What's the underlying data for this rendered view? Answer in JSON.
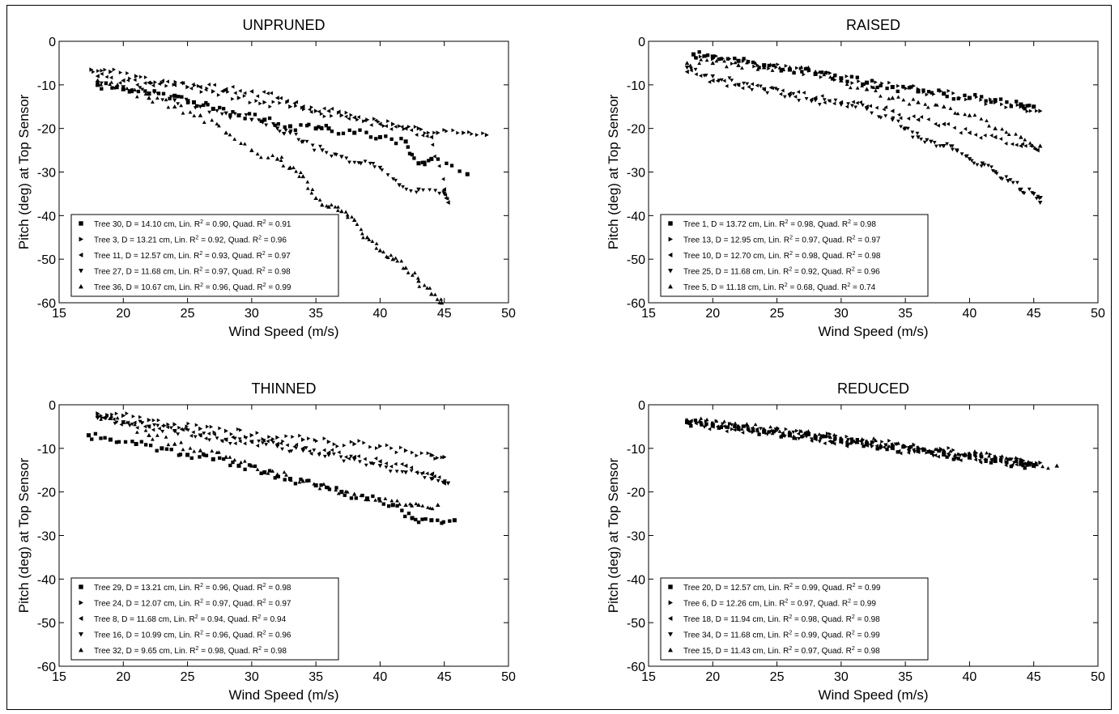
{
  "figure": {
    "border": true,
    "ink_color": "#000000",
    "background": "#ffffff"
  },
  "chart_data": [
    {
      "type": "scatter",
      "title": "UNPRUNED",
      "xlabel": "Wind Speed (m/s)",
      "ylabel": "Pitch (deg) at Top Sensor",
      "xlim": [
        15,
        50
      ],
      "ylim": [
        -60,
        0
      ],
      "xticks": [
        "15",
        "20",
        "25",
        "30",
        "35",
        "40",
        "45",
        "50"
      ],
      "yticks": [
        "0",
        "-10",
        "-20",
        "-30",
        "-40",
        "-50",
        "-60"
      ],
      "grid": false,
      "legend_position": "bottom-left",
      "legend": [
        {
          "marker": "square",
          "pre": "Tree 30, D = 14.10 cm, Lin. R",
          "mid": " = 0.90, Quad. R",
          "post": " = 0.91"
        },
        {
          "marker": "tri-right",
          "pre": "Tree 3, D = 13.21 cm, Lin. R",
          "mid": " = 0.92, Quad. R",
          "post": " = 0.96"
        },
        {
          "marker": "tri-left",
          "pre": "Tree 11, D = 12.57 cm, Lin. R",
          "mid": " = 0.93, Quad. R",
          "post": " = 0.97"
        },
        {
          "marker": "tri-down",
          "pre": "Tree 27, D = 11.68 cm, Lin. R",
          "mid": " = 0.97, Quad. R",
          "post": " = 0.98"
        },
        {
          "marker": "tri-up",
          "pre": "Tree 36, D = 10.67 cm, Lin. R",
          "mid": " = 0.96, Quad. R",
          "post": " = 0.99"
        }
      ],
      "series": [
        {
          "marker": "square",
          "x": [
            18,
            20,
            22,
            24,
            25.5,
            27,
            29,
            31,
            33,
            35,
            36,
            38,
            40,
            42,
            43,
            44,
            46.8
          ],
          "y": [
            -10,
            -11,
            -12,
            -12.5,
            -14,
            -15.5,
            -17,
            -18,
            -19.5,
            -20,
            -20,
            -21,
            -22,
            -23,
            -28,
            -27,
            -30.5
          ]
        },
        {
          "marker": "tri-right",
          "x": [
            17.5,
            19,
            21,
            23,
            25,
            27,
            29,
            31,
            33,
            35,
            37,
            39,
            41,
            43,
            44.5,
            46.5,
            48.3
          ],
          "y": [
            -6.5,
            -7,
            -8,
            -9.5,
            -10.5,
            -11.5,
            -13,
            -14,
            -15,
            -16,
            -17,
            -18,
            -19,
            -20,
            -21,
            -21,
            -21.5
          ]
        },
        {
          "marker": "tri-left",
          "x": [
            18,
            20,
            22,
            24,
            26,
            28,
            30,
            32,
            34,
            36,
            38,
            40,
            42,
            44,
            45,
            45.3
          ],
          "y": [
            -8,
            -9,
            -9.5,
            -10,
            -10.5,
            -11,
            -11.5,
            -13,
            -15,
            -16,
            -17.5,
            -19,
            -20,
            -22,
            -34,
            -37
          ]
        },
        {
          "marker": "tri-down",
          "x": [
            18,
            20,
            22,
            24,
            26,
            28,
            30,
            32,
            33,
            34,
            35.5,
            37,
            38.5,
            40,
            41.5,
            43,
            45
          ],
          "y": [
            -9.5,
            -10.5,
            -12,
            -13.5,
            -15,
            -16.5,
            -18,
            -20,
            -21,
            -23,
            -25,
            -26.5,
            -28,
            -29,
            -33,
            -34,
            -35
          ]
        },
        {
          "marker": "tri-up",
          "x": [
            18,
            20,
            22,
            24,
            26,
            28,
            30,
            32,
            33,
            34,
            35,
            36,
            37,
            38,
            39,
            40,
            41,
            42,
            43,
            44,
            44.8
          ],
          "y": [
            -9,
            -11,
            -13,
            -15,
            -17,
            -21,
            -25,
            -27,
            -29,
            -31,
            -36,
            -38,
            -39,
            -41,
            -45,
            -48,
            -50,
            -52,
            -55,
            -58,
            -60
          ]
        }
      ]
    },
    {
      "type": "scatter",
      "title": "RAISED",
      "xlabel": "Wind Speed (m/s)",
      "ylabel": "Pitch (deg) at Top Sensor",
      "xlim": [
        15,
        50
      ],
      "ylim": [
        -60,
        0
      ],
      "xticks": [
        "15",
        "20",
        "25",
        "30",
        "35",
        "40",
        "45",
        "50"
      ],
      "yticks": [
        "0",
        "-10",
        "-20",
        "-30",
        "-40",
        "-50",
        "-60"
      ],
      "grid": false,
      "legend_position": "bottom-left",
      "legend": [
        {
          "marker": "square",
          "pre": "Tree 1, D = 13.72 cm, Lin. R",
          "mid": " = 0.98, Quad. R",
          "post": " = 0.98"
        },
        {
          "marker": "tri-right",
          "pre": "Tree 13, D = 12.95 cm, Lin. R",
          "mid": " = 0.97, Quad. R",
          "post": " = 0.97"
        },
        {
          "marker": "tri-left",
          "pre": "Tree 10, D = 12.70 cm, Lin. R",
          "mid": " = 0.98, Quad. R",
          "post": " = 0.98"
        },
        {
          "marker": "tri-down",
          "pre": "Tree 25, D = 11.68 cm, Lin. R",
          "mid": " = 0.92, Quad. R",
          "post": " = 0.96"
        },
        {
          "marker": "tri-up",
          "pre": "Tree 5, D = 11.18 cm, Lin. R",
          "mid": " = 0.68, Quad. R",
          "post": " = 0.74"
        }
      ],
      "series": [
        {
          "marker": "square",
          "x": [
            18.5,
            20,
            22,
            24,
            26,
            28,
            30,
            32,
            34,
            36,
            38,
            40,
            42,
            44,
            45
          ],
          "y": [
            -3,
            -3.5,
            -4.5,
            -5.5,
            -6.5,
            -7.5,
            -8.5,
            -9.5,
            -10.5,
            -11.5,
            -12,
            -13,
            -13.5,
            -14.5,
            -15
          ]
        },
        {
          "marker": "tri-right",
          "x": [
            18.5,
            20,
            22,
            24,
            26,
            28,
            30,
            32,
            34,
            36,
            38,
            40,
            42,
            44,
            45.5
          ],
          "y": [
            -3,
            -4,
            -4.5,
            -5.5,
            -6.5,
            -7.5,
            -8.5,
            -9.5,
            -10.5,
            -11,
            -12,
            -13,
            -14,
            -15,
            -16
          ]
        },
        {
          "marker": "tri-left",
          "x": [
            18,
            20,
            22,
            24,
            26,
            28,
            30,
            32,
            34,
            36,
            38,
            40,
            42,
            44,
            45.3
          ],
          "y": [
            -7,
            -9,
            -10,
            -11,
            -12,
            -13,
            -14,
            -15,
            -16,
            -18,
            -19,
            -21,
            -22,
            -24,
            -25
          ]
        },
        {
          "marker": "tri-down",
          "x": [
            18,
            20,
            22,
            24,
            26,
            28,
            30,
            32,
            34,
            35,
            36,
            37,
            38,
            39,
            40,
            41,
            42,
            43,
            44,
            45,
            45.5
          ],
          "y": [
            -6,
            -8,
            -10,
            -11,
            -12.5,
            -13.5,
            -14.5,
            -15.5,
            -18,
            -20,
            -22,
            -23,
            -24,
            -25,
            -27,
            -28,
            -30,
            -32,
            -34,
            -35,
            -37
          ]
        },
        {
          "marker": "tri-up",
          "x": [
            18,
            20,
            22,
            24,
            26,
            28,
            30,
            32,
            34,
            36,
            38,
            40,
            42,
            44,
            45.5
          ],
          "y": [
            -5,
            -5,
            -5.5,
            -6,
            -6,
            -7,
            -9,
            -11,
            -13,
            -14,
            -15,
            -17,
            -20,
            -22,
            -24
          ]
        }
      ]
    },
    {
      "type": "scatter",
      "title": "THINNED",
      "xlabel": "Wind Speed (m/s)",
      "ylabel": "Pitch (deg) at Top Sensor",
      "xlim": [
        15,
        50
      ],
      "ylim": [
        -60,
        0
      ],
      "xticks": [
        "15",
        "20",
        "25",
        "30",
        "35",
        "40",
        "45",
        "50"
      ],
      "yticks": [
        "0",
        "-10",
        "-20",
        "-30",
        "-40",
        "-50",
        "-60"
      ],
      "grid": false,
      "legend_position": "bottom-left",
      "legend": [
        {
          "marker": "square",
          "pre": "Tree 29, D = 13.21 cm, Lin. R",
          "mid": " = 0.96, Quad. R",
          "post": " = 0.98"
        },
        {
          "marker": "tri-right",
          "pre": "Tree 24, D = 12.07 cm, Lin. R",
          "mid": " = 0.97, Quad. R",
          "post": " = 0.97"
        },
        {
          "marker": "tri-left",
          "pre": "Tree 8, D = 11.68 cm, Lin. R",
          "mid": " = 0.94, Quad. R",
          "post": " = 0.94"
        },
        {
          "marker": "tri-down",
          "pre": "Tree 16, D = 10.99 cm, Lin. R",
          "mid": " = 0.96, Quad. R",
          "post": " = 0.96"
        },
        {
          "marker": "tri-up",
          "pre": "Tree 32, D = 9.65 cm, Lin. R",
          "mid": " = 0.98, Quad. R",
          "post": " = 0.98"
        }
      ],
      "series": [
        {
          "marker": "square",
          "x": [
            17.3,
            19,
            21,
            23,
            25,
            27,
            29,
            31,
            33,
            35,
            37,
            39,
            41,
            42.5,
            44,
            45.8
          ],
          "y": [
            -7,
            -8,
            -9,
            -10,
            -11.5,
            -12.5,
            -14,
            -15.5,
            -17,
            -18.5,
            -20,
            -21.5,
            -23,
            -26,
            -26.5,
            -26.5
          ]
        },
        {
          "marker": "tri-right",
          "x": [
            18,
            20,
            22,
            24,
            26,
            28,
            30,
            32,
            34,
            36,
            38,
            40,
            42,
            44,
            45
          ],
          "y": [
            -2,
            -2.5,
            -3.5,
            -4.5,
            -5.5,
            -6,
            -7,
            -7.5,
            -8,
            -8.5,
            -9,
            -9.5,
            -10.5,
            -11.5,
            -12
          ]
        },
        {
          "marker": "tri-left",
          "x": [
            18.5,
            20,
            22,
            24,
            26,
            28,
            30,
            32,
            34,
            36,
            38,
            40,
            42,
            44,
            45
          ],
          "y": [
            -3,
            -4,
            -5,
            -6,
            -7,
            -8,
            -8.5,
            -9,
            -10,
            -11,
            -12,
            -13,
            -14,
            -16,
            -18
          ]
        },
        {
          "marker": "tri-down",
          "x": [
            18,
            20,
            22,
            24,
            26,
            28,
            30,
            32,
            34,
            36,
            38,
            40,
            42,
            44,
            45.3
          ],
          "y": [
            -3,
            -4,
            -5,
            -6,
            -7,
            -8,
            -8.5,
            -9.5,
            -10.5,
            -11.5,
            -12.5,
            -14,
            -15.5,
            -17,
            -18
          ]
        },
        {
          "marker": "tri-up",
          "x": [
            18,
            20,
            22,
            24,
            26,
            28,
            30,
            32,
            34,
            36,
            38,
            40,
            42,
            43,
            44.5
          ],
          "y": [
            -2.5,
            -4,
            -7,
            -9,
            -10.5,
            -12,
            -14,
            -16,
            -17.5,
            -19,
            -20.5,
            -22,
            -23,
            -23,
            -23
          ]
        }
      ]
    },
    {
      "type": "scatter",
      "title": "REDUCED",
      "xlabel": "Wind Speed (m/s)",
      "ylabel": "Pitch (deg) at Top Sensor",
      "xlim": [
        15,
        50
      ],
      "ylim": [
        -60,
        0
      ],
      "xticks": [
        "15",
        "20",
        "25",
        "30",
        "35",
        "40",
        "45",
        "50"
      ],
      "yticks": [
        "0",
        "-10",
        "-20",
        "-30",
        "-40",
        "-50",
        "-60"
      ],
      "grid": false,
      "legend_position": "bottom-left",
      "legend": [
        {
          "marker": "square",
          "pre": "Tree 20, D = 12.57 cm, Lin. R",
          "mid": " = 0.99, Quad. R",
          "post": " = 0.99"
        },
        {
          "marker": "tri-right",
          "pre": "Tree 6, D = 12.26 cm, Lin. R",
          "mid": " = 0.97, Quad. R",
          "post": " = 0.99"
        },
        {
          "marker": "tri-left",
          "pre": "Tree 18, D = 11.94 cm, Lin. R",
          "mid": " = 0.98, Quad. R",
          "post": " = 0.98"
        },
        {
          "marker": "tri-down",
          "pre": "Tree 34, D = 11.68 cm, Lin. R",
          "mid": " = 0.99, Quad. R",
          "post": " = 0.99"
        },
        {
          "marker": "tri-up",
          "pre": "Tree 15, D = 11.43 cm, Lin. R",
          "mid": " = 0.97, Quad. R",
          "post": " = 0.98"
        }
      ],
      "series": [
        {
          "marker": "square",
          "x": [
            18,
            20,
            22,
            24,
            26,
            28,
            30,
            32,
            34,
            36,
            38,
            40,
            42,
            44,
            45
          ],
          "y": [
            -4,
            -4.8,
            -5.5,
            -6.2,
            -7,
            -7.6,
            -8.4,
            -9.1,
            -9.9,
            -10.6,
            -11.4,
            -12.1,
            -12.9,
            -13.6,
            -14
          ]
        },
        {
          "marker": "tri-right",
          "x": [
            18,
            20,
            22,
            24,
            26,
            28,
            30,
            32,
            34,
            36,
            38,
            40,
            42,
            44,
            45.5
          ],
          "y": [
            -3.6,
            -4.3,
            -5,
            -5.7,
            -6.4,
            -7.1,
            -7.8,
            -8.5,
            -9.2,
            -9.9,
            -10.6,
            -11.3,
            -12,
            -12.7,
            -13.3
          ]
        },
        {
          "marker": "tri-left",
          "x": [
            18,
            20,
            22,
            24,
            26,
            28,
            30,
            32,
            34,
            36,
            38,
            40,
            42,
            44,
            45
          ],
          "y": [
            -4.2,
            -5,
            -5.7,
            -6.4,
            -7.1,
            -7.9,
            -8.6,
            -9.3,
            -10,
            -10.8,
            -11.5,
            -12.2,
            -12.9,
            -13.7,
            -14.1
          ]
        },
        {
          "marker": "tri-down",
          "x": [
            18,
            20,
            22,
            24,
            26,
            28,
            30,
            32,
            34,
            36,
            38,
            40,
            42,
            44,
            45
          ],
          "y": [
            -4,
            -4.7,
            -5.4,
            -6.1,
            -6.8,
            -7.5,
            -8.2,
            -9,
            -9.7,
            -10.4,
            -11.2,
            -11.9,
            -12.6,
            -13.4,
            -13.8
          ]
        },
        {
          "marker": "tri-up",
          "x": [
            18,
            20,
            22,
            24,
            26,
            28,
            30,
            32,
            34,
            36,
            38,
            40,
            42,
            44,
            46.8
          ],
          "y": [
            -3.5,
            -4.2,
            -4.9,
            -5.6,
            -6.3,
            -7,
            -7.7,
            -8.4,
            -9.1,
            -9.8,
            -10.5,
            -11.2,
            -11.9,
            -12.6,
            -14
          ]
        }
      ]
    }
  ]
}
